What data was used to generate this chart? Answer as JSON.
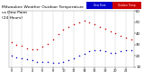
{
  "title_left": "Milwaukee Weather Outdoor Temperature",
  "title_right_blue": "Dew Point",
  "title_right_red": "Outdoor Temp",
  "hours": [
    0,
    1,
    2,
    3,
    4,
    5,
    6,
    7,
    8,
    9,
    10,
    11,
    12,
    13,
    14,
    15,
    16,
    17,
    18,
    19,
    20,
    21,
    22,
    23
  ],
  "temp": [
    32,
    30,
    29,
    27,
    26,
    26,
    28,
    31,
    35,
    39,
    43,
    46,
    48,
    50,
    51,
    50,
    48,
    46,
    44,
    42,
    40,
    38,
    36,
    35
  ],
  "dew": [
    20,
    19,
    18,
    17,
    16,
    15,
    15,
    15,
    14,
    14,
    15,
    16,
    18,
    20,
    22,
    24,
    25,
    25,
    24,
    23,
    23,
    24,
    25,
    25
  ],
  "temp_color": "#cc0000",
  "dew_color": "#0000cc",
  "bg_color": "#ffffff",
  "grid_color": "#999999",
  "ylim": [
    10,
    60
  ],
  "yticks": [
    10,
    20,
    30,
    40,
    50,
    60
  ],
  "title_fontsize": 3.5,
  "dot_size": 1.2
}
